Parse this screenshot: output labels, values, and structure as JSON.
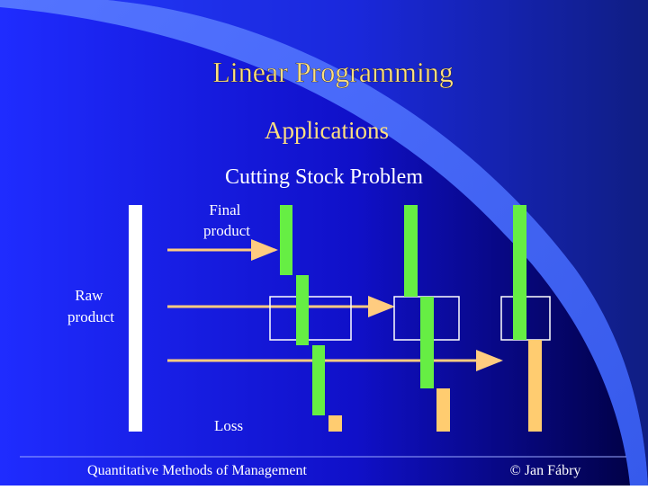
{
  "slide": {
    "title": "Linear Programming",
    "subtitle": "Applications",
    "heading": "Cutting Stock Problem",
    "labels": {
      "final_product": [
        "Final",
        "product"
      ],
      "raw_product": [
        "Raw",
        "product"
      ],
      "loss": "Loss"
    },
    "footer": {
      "left": "Quantitative Methods of Management",
      "right": "© Jan Fábry"
    }
  }
}
